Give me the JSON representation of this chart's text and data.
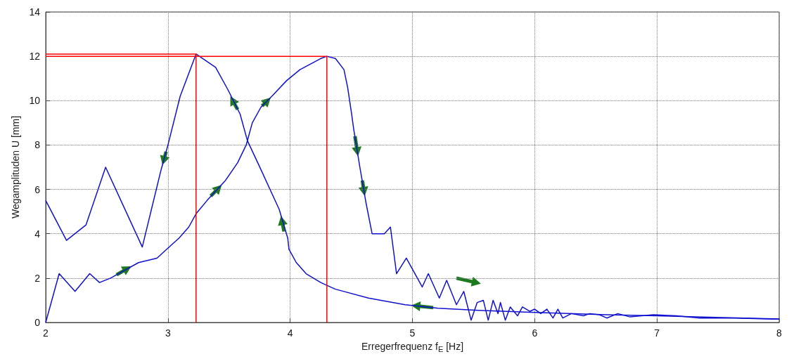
{
  "chart_data": {
    "type": "line",
    "xlabel": "Erregerfrequenz f$_{E}$ [Hz]",
    "ylabel": "Wegamplituden U [mm]",
    "xlim": [
      2,
      8
    ],
    "xticks": [
      2,
      3,
      4,
      5,
      6,
      7,
      8
    ],
    "ylim": [
      0,
      14
    ],
    "yticks": [
      0,
      2,
      4,
      6,
      8,
      10,
      12,
      14
    ],
    "grid": true,
    "line_style": "solid",
    "marker": "none",
    "series": [
      {
        "color": "#1010d0",
        "x": [
          2.0,
          2.11,
          2.24,
          2.36,
          2.44,
          2.53,
          2.76,
          2.91,
          2.99,
          3.09,
          3.17,
          3.23,
          3.32,
          3.47,
          3.57,
          3.64,
          3.69,
          3.76,
          3.85,
          3.97,
          4.08,
          4.25,
          4.3,
          4.37,
          4.44,
          4.47,
          4.5,
          4.52,
          4.57,
          4.62,
          4.67,
          4.77,
          4.82,
          4.87,
          4.95,
          5.08,
          5.13,
          5.22,
          5.28,
          5.36,
          5.42,
          5.48,
          5.53,
          5.58,
          5.62,
          5.66,
          5.7,
          5.72,
          5.76,
          5.8,
          5.86,
          5.9,
          5.96,
          6.0,
          6.05,
          6.1,
          6.15,
          6.19,
          6.23,
          6.3,
          6.4,
          6.45,
          6.53,
          6.59,
          6.68,
          6.78,
          6.97,
          7.16,
          7.35,
          7.64,
          7.96,
          8.0
        ],
        "values": [
          0,
          2.2,
          1.4,
          2.2,
          1.8,
          2.0,
          2.7,
          2.9,
          3.3,
          3.8,
          4.3,
          4.9,
          5.5,
          6.4,
          7.2,
          8.0,
          9.0,
          9.7,
          10.2,
          10.9,
          11.4,
          11.9,
          12.0,
          11.9,
          11.4,
          10.6,
          9.5,
          8.7,
          7.0,
          5.4,
          4.0,
          4.0,
          4.3,
          2.2,
          2.9,
          1.6,
          2.2,
          1.1,
          1.9,
          0.8,
          1.4,
          0.1,
          0.9,
          1.0,
          0.1,
          1.0,
          0.4,
          0.9,
          0.1,
          0.7,
          0.3,
          0.7,
          0.5,
          0.6,
          0.4,
          0.6,
          0.2,
          0.6,
          0.2,
          0.4,
          0.3,
          0.4,
          0.35,
          0.2,
          0.4,
          0.25,
          0.35,
          0.3,
          0.2,
          0.2,
          0.15,
          0.15
        ]
      },
      {
        "color": "#1010d0",
        "x": [
          2.0,
          2.17,
          2.33,
          2.49,
          2.79,
          2.94,
          3.0,
          3.1,
          3.23,
          3.39,
          3.49,
          3.59,
          3.65,
          3.76,
          3.91,
          3.98,
          3.99,
          4.05,
          4.13,
          4.25,
          4.29,
          4.37,
          4.64,
          4.94,
          5.21,
          5.54,
          6.01,
          6.59,
          7.0,
          7.54,
          8.0
        ],
        "values": [
          5.5,
          3.7,
          4.4,
          7.0,
          3.4,
          6.8,
          8.0,
          10.2,
          12.1,
          11.5,
          10.5,
          9.4,
          8.2,
          6.9,
          5.1,
          3.8,
          3.3,
          2.7,
          2.2,
          1.8,
          1.7,
          1.5,
          1.1,
          0.8,
          0.64,
          0.55,
          0.45,
          0.35,
          0.3,
          0.22,
          0.16
        ]
      },
      {
        "color": "#ff0000",
        "x": [
          2.0,
          3.23,
          3.23
        ],
        "values": [
          12.1,
          12.1,
          0
        ]
      },
      {
        "color": "#ff0000",
        "x": [
          2.0,
          4.3,
          4.3
        ],
        "values": [
          12.0,
          12.0,
          0
        ]
      }
    ]
  }
}
